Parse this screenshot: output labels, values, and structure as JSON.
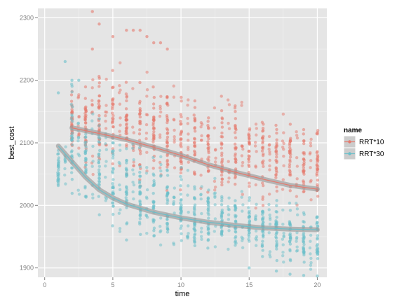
{
  "chart_data": {
    "type": "scatter",
    "title": "",
    "xlabel": "time",
    "ylabel": "best_cost",
    "xlim": [
      -0.5,
      20.7
    ],
    "ylim": [
      1885,
      2315
    ],
    "x_ticks": [
      0,
      5,
      10,
      15,
      20
    ],
    "y_ticks": [
      1900,
      2000,
      2100,
      2200,
      2300
    ],
    "grid": true,
    "legend_placement": "right",
    "legend_title": "name",
    "panel_background": "#e5e5e5",
    "grid_color": "#ffffff",
    "smooth_color": "#999999",
    "series": [
      {
        "name": "RRT*10",
        "color": "#e57a6e",
        "x_start": 2,
        "x_end": 20,
        "spread_low": [
          2060,
          2040,
          2035,
          2030,
          2030,
          2020,
          2015,
          2010,
          2005,
          2000,
          1995,
          1995,
          1990,
          1990,
          1985,
          1985,
          1982,
          1980,
          1978
        ],
        "spread_high": [
          2200,
          2220,
          2240,
          2240,
          2230,
          2220,
          2220,
          2215,
          2210,
          2200,
          2195,
          2190,
          2180,
          2175,
          2165,
          2160,
          2150,
          2140,
          2135
        ],
        "outliers": [
          [
            3.5,
            2310
          ],
          [
            4,
            2290
          ],
          [
            3.5,
            2250
          ],
          [
            5,
            2270
          ],
          [
            6,
            2280
          ],
          [
            6.5,
            2280
          ],
          [
            7,
            2280
          ],
          [
            7.5,
            2270
          ],
          [
            8,
            2260
          ],
          [
            8.5,
            2260
          ],
          [
            9,
            2250
          ]
        ],
        "smooth": [
          [
            2,
            2124
          ],
          [
            4,
            2115
          ],
          [
            6,
            2105
          ],
          [
            8,
            2093
          ],
          [
            10,
            2080
          ],
          [
            12,
            2065
          ],
          [
            14,
            2053
          ],
          [
            16,
            2042
          ],
          [
            18,
            2032
          ],
          [
            20,
            2026
          ]
        ]
      },
      {
        "name": "RRT*30",
        "color": "#6bbfca",
        "x_start": 1,
        "x_end": 20,
        "spread_low": [
          2010,
          1985,
          1970,
          1950,
          1940,
          1935,
          1925,
          1920,
          1915,
          1915,
          1912,
          1912,
          1910,
          1910,
          1910,
          1905,
          1900,
          1895,
          1890,
          1890
        ],
        "spread_high": [
          2110,
          2230,
          2190,
          2170,
          2140,
          2120,
          2110,
          2100,
          2085,
          2070,
          2055,
          2050,
          2040,
          2035,
          2030,
          2025,
          2020,
          2020,
          2015,
          2010
        ],
        "outliers": [
          [
            1.5,
            2230
          ],
          [
            2,
            2200
          ],
          [
            2.5,
            2200
          ],
          [
            1,
            2180
          ],
          [
            15,
            1900
          ],
          [
            17,
            1895
          ],
          [
            18,
            1890
          ],
          [
            19,
            1888
          ],
          [
            20,
            1887
          ]
        ],
        "smooth": [
          [
            1,
            2095
          ],
          [
            2,
            2070
          ],
          [
            3,
            2045
          ],
          [
            4,
            2025
          ],
          [
            5,
            2012
          ],
          [
            6,
            2002
          ],
          [
            8,
            1989
          ],
          [
            10,
            1980
          ],
          [
            12,
            1973
          ],
          [
            14,
            1968
          ],
          [
            16,
            1964
          ],
          [
            18,
            1962
          ],
          [
            20,
            1961
          ]
        ]
      }
    ]
  }
}
